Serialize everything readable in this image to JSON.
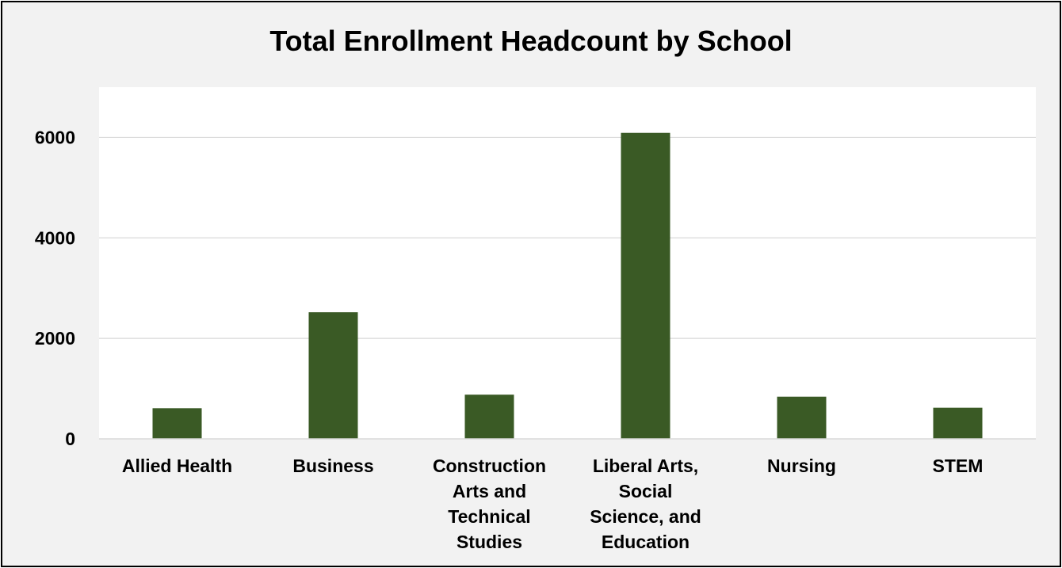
{
  "chart_data": {
    "type": "bar",
    "title": "Total Enrollment Headcount by School",
    "xlabel": "",
    "ylabel": "",
    "categories": [
      [
        "Allied Health"
      ],
      [
        "Business"
      ],
      [
        "Construction",
        "Arts and",
        "Technical",
        "Studies"
      ],
      [
        "Liberal Arts,",
        "Social",
        "Science, and",
        "Education"
      ],
      [
        "Nursing"
      ],
      [
        "STEM"
      ]
    ],
    "values": [
      610,
      2520,
      880,
      6090,
      840,
      620
    ],
    "ylim": [
      0,
      7000
    ],
    "yticks": [
      "0",
      "2000",
      "4000",
      "6000"
    ],
    "grid": true,
    "legend": "none",
    "bar_color": "#3a5a25"
  }
}
